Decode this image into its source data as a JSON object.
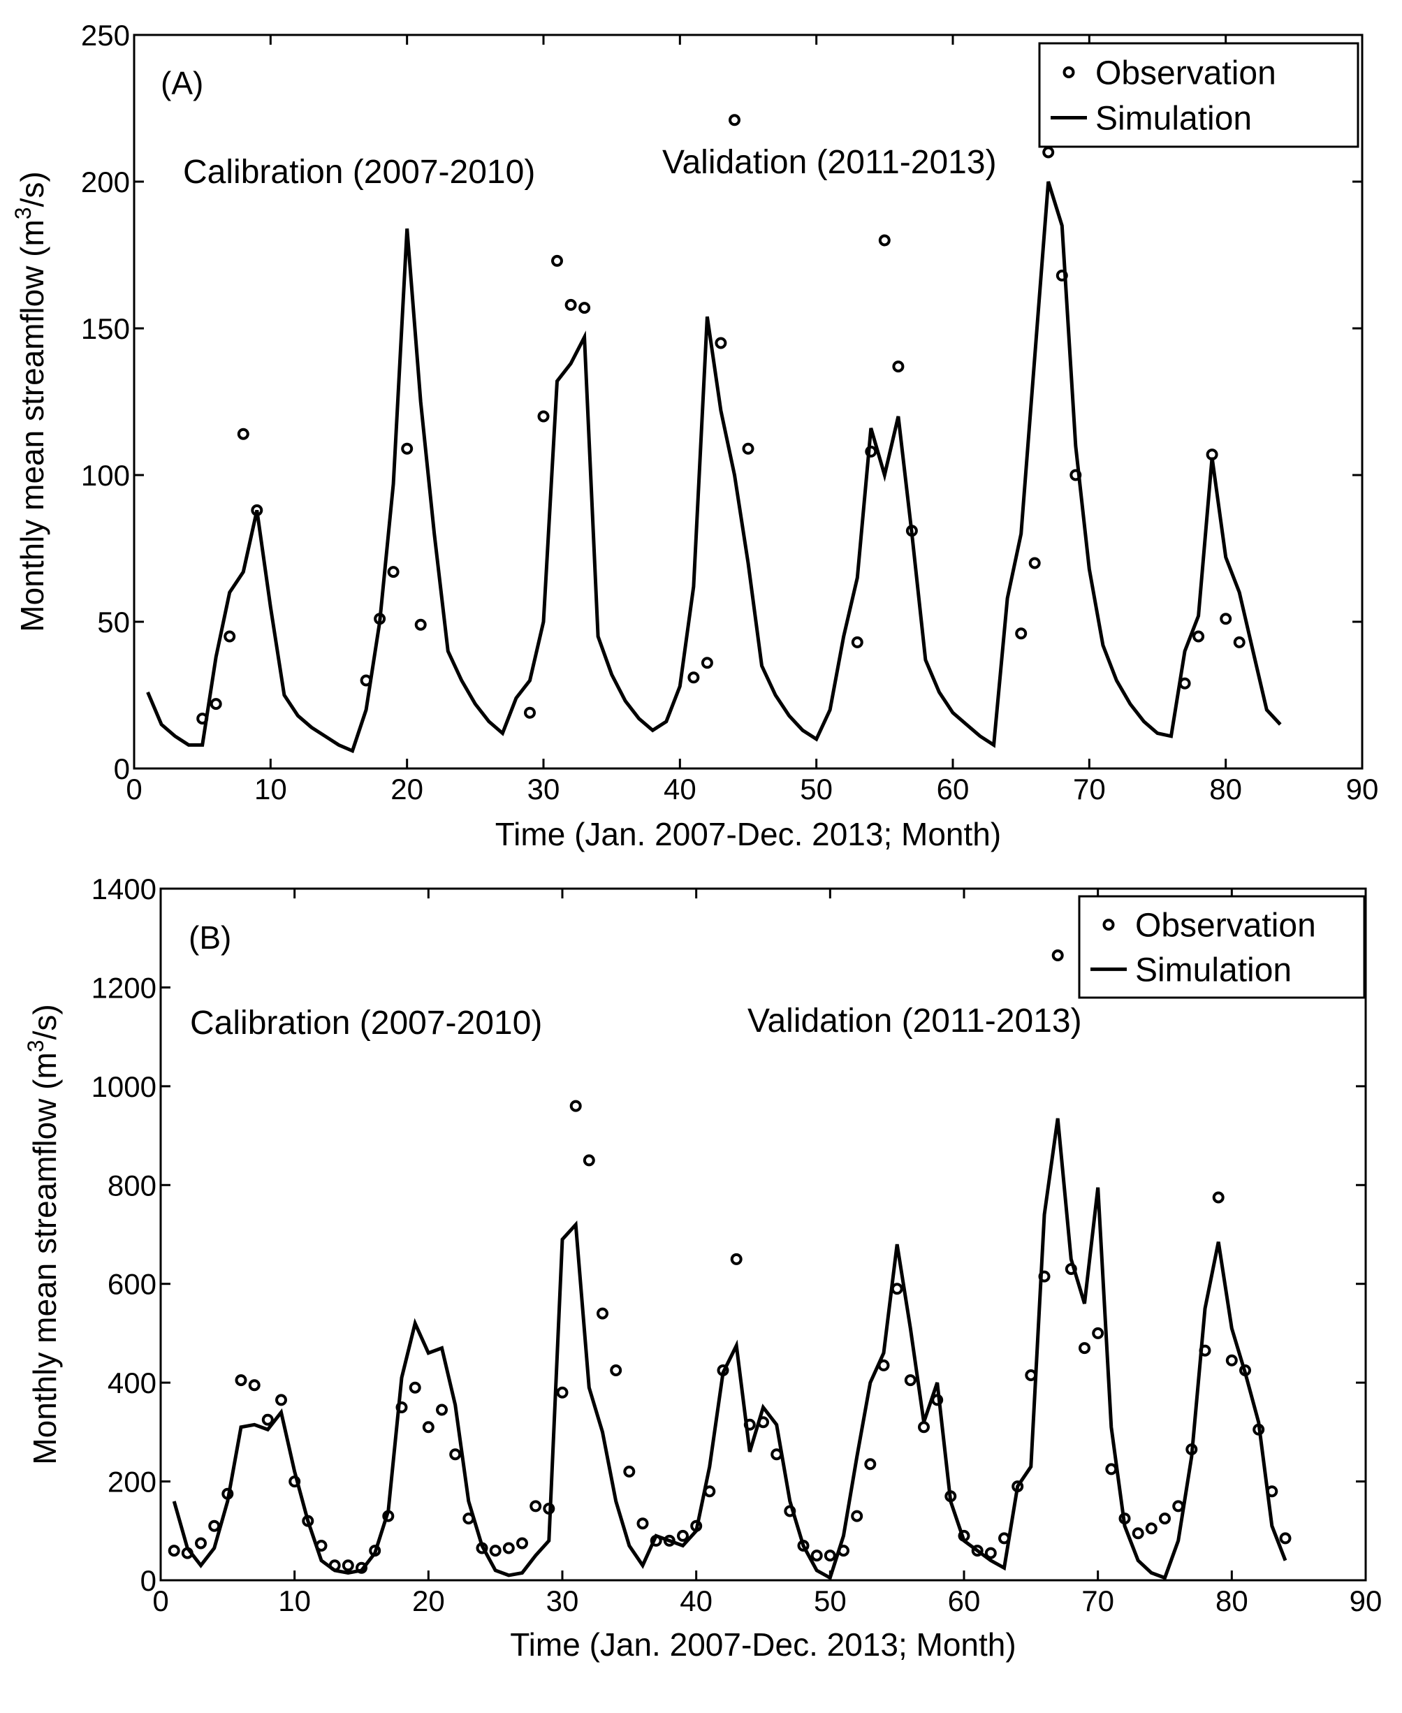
{
  "chart_data": [
    {
      "type": "line",
      "panel_label": "(A)",
      "xlabel": "Time (Jan. 2007-Dec. 2013; Month)",
      "ylabel_main": "Monthly mean streamflow (m",
      "ylabel_sup": "3",
      "ylabel_end": "/s)",
      "xlim": [
        0,
        90
      ],
      "ylim": [
        0,
        250
      ],
      "xticks": [
        0,
        10,
        20,
        30,
        40,
        50,
        60,
        70,
        80,
        90
      ],
      "yticks": [
        0,
        50,
        100,
        150,
        200,
        250
      ],
      "annotations": [
        "Calibration (2007-2010)",
        "Validation (2011-2013)"
      ],
      "legend": {
        "position": "top-right",
        "entries": [
          "Observation",
          "Simulation"
        ]
      },
      "series": [
        {
          "name": "Observation",
          "marker": "circle",
          "x": [
            5,
            6,
            7,
            8,
            9,
            17,
            18,
            19,
            20,
            21,
            29,
            30,
            31,
            32,
            33,
            41,
            42,
            43,
            44,
            45,
            53,
            54,
            55,
            56,
            57,
            65,
            66,
            67,
            68,
            69,
            77,
            78,
            79,
            80,
            81
          ],
          "y": [
            17,
            22,
            45,
            114,
            88,
            30,
            51,
            67,
            109,
            49,
            19,
            120,
            173,
            158,
            157,
            31,
            36,
            145,
            221,
            109,
            43,
            108,
            180,
            137,
            81,
            46,
            70,
            210,
            168,
            100,
            29,
            45,
            107,
            51,
            43
          ]
        },
        {
          "name": "Simulation",
          "x": [
            1,
            2,
            3,
            4,
            5,
            6,
            7,
            8,
            9,
            10,
            11,
            12,
            13,
            14,
            15,
            16,
            17,
            18,
            19,
            20,
            21,
            22,
            23,
            24,
            25,
            26,
            27,
            28,
            29,
            30,
            31,
            32,
            33,
            34,
            35,
            36,
            37,
            38,
            39,
            40,
            41,
            42,
            43,
            44,
            45,
            46,
            47,
            48,
            49,
            50,
            51,
            52,
            53,
            54,
            55,
            56,
            57,
            58,
            59,
            60,
            61,
            62,
            63,
            64,
            65,
            66,
            67,
            68,
            69,
            70,
            71,
            72,
            73,
            74,
            75,
            76,
            77,
            78,
            79,
            80,
            81,
            82,
            83,
            84
          ],
          "y": [
            26,
            15,
            11,
            8,
            8,
            38,
            60,
            67,
            88,
            55,
            25,
            18,
            14,
            11,
            8,
            6,
            20,
            50,
            97,
            184,
            125,
            80,
            40,
            30,
            22,
            16,
            12,
            24,
            30,
            50,
            132,
            138,
            147,
            45,
            32,
            23,
            17,
            13,
            16,
            28,
            62,
            154,
            122,
            100,
            70,
            35,
            25,
            18,
            13,
            10,
            20,
            45,
            65,
            116,
            100,
            120,
            80,
            37,
            26,
            19,
            15,
            11,
            8,
            58,
            80,
            140,
            200,
            185,
            110,
            68,
            42,
            30,
            22,
            16,
            12,
            11,
            40,
            52,
            106,
            72,
            60,
            40,
            20,
            15
          ]
        }
      ]
    },
    {
      "type": "line",
      "panel_label": "(B)",
      "xlabel": "Time (Jan. 2007-Dec. 2013; Month)",
      "ylabel_main": "Monthly mean streamflow (m",
      "ylabel_sup": "3",
      "ylabel_end": "/s)",
      "xlim": [
        0,
        90
      ],
      "ylim": [
        0,
        1400
      ],
      "xticks": [
        0,
        10,
        20,
        30,
        40,
        50,
        60,
        70,
        80,
        90
      ],
      "yticks": [
        0,
        200,
        400,
        600,
        800,
        1000,
        1200,
        1400
      ],
      "annotations": [
        "Calibration (2007-2010)",
        "Validation (2011-2013)"
      ],
      "legend": {
        "position": "top-right",
        "entries": [
          "Observation",
          "Simulation"
        ]
      },
      "series": [
        {
          "name": "Observation",
          "marker": "circle",
          "x": [
            1,
            2,
            3,
            4,
            5,
            6,
            7,
            8,
            9,
            10,
            11,
            12,
            13,
            14,
            15,
            16,
            17,
            18,
            19,
            20,
            21,
            22,
            23,
            24,
            25,
            26,
            27,
            28,
            29,
            30,
            31,
            32,
            33,
            34,
            35,
            36,
            37,
            38,
            39,
            40,
            41,
            42,
            43,
            44,
            45,
            46,
            47,
            48,
            49,
            50,
            51,
            52,
            53,
            54,
            55,
            56,
            57,
            58,
            59,
            60,
            61,
            62,
            63,
            64,
            65,
            66,
            67,
            68,
            69,
            70,
            71,
            72,
            73,
            74,
            75,
            76,
            77,
            78,
            79,
            80,
            81,
            82,
            83,
            84
          ],
          "y": [
            60,
            55,
            75,
            110,
            175,
            405,
            395,
            325,
            365,
            200,
            120,
            70,
            30,
            30,
            25,
            60,
            130,
            350,
            390,
            310,
            345,
            255,
            125,
            65,
            60,
            65,
            75,
            150,
            145,
            380,
            960,
            850,
            540,
            425,
            220,
            115,
            80,
            80,
            90,
            110,
            180,
            425,
            650,
            315,
            320,
            255,
            140,
            70,
            50,
            50,
            60,
            130,
            235,
            435,
            590,
            405,
            310,
            365,
            170,
            90,
            60,
            55,
            85,
            190,
            415,
            615,
            1265,
            630,
            470,
            500,
            225,
            125,
            95,
            105,
            125,
            150,
            265,
            465,
            775,
            445,
            425,
            305,
            180,
            85
          ]
        },
        {
          "name": "Simulation",
          "x": [
            1,
            2,
            3,
            4,
            5,
            6,
            7,
            8,
            9,
            10,
            11,
            12,
            13,
            14,
            15,
            16,
            17,
            18,
            19,
            20,
            21,
            22,
            23,
            24,
            25,
            26,
            27,
            28,
            29,
            30,
            31,
            32,
            33,
            34,
            35,
            36,
            37,
            38,
            39,
            40,
            41,
            42,
            43,
            44,
            45,
            46,
            47,
            48,
            49,
            50,
            51,
            52,
            53,
            54,
            55,
            56,
            57,
            58,
            59,
            60,
            61,
            62,
            63,
            64,
            65,
            66,
            67,
            68,
            69,
            70,
            71,
            72,
            73,
            74,
            75,
            76,
            77,
            78,
            79,
            80,
            81,
            82,
            83,
            84
          ],
          "y": [
            160,
            65,
            30,
            65,
            160,
            310,
            315,
            305,
            340,
            220,
            120,
            40,
            20,
            15,
            20,
            55,
            140,
            410,
            520,
            460,
            470,
            355,
            160,
            70,
            20,
            10,
            15,
            50,
            80,
            690,
            720,
            390,
            300,
            160,
            70,
            30,
            90,
            80,
            70,
            100,
            230,
            420,
            475,
            260,
            350,
            315,
            160,
            70,
            20,
            5,
            90,
            250,
            400,
            460,
            680,
            510,
            320,
            400,
            160,
            80,
            60,
            40,
            25,
            190,
            230,
            740,
            935,
            650,
            560,
            795,
            310,
            110,
            40,
            15,
            5,
            80,
            250,
            550,
            685,
            510,
            420,
            320,
            110,
            40
          ]
        }
      ]
    }
  ]
}
